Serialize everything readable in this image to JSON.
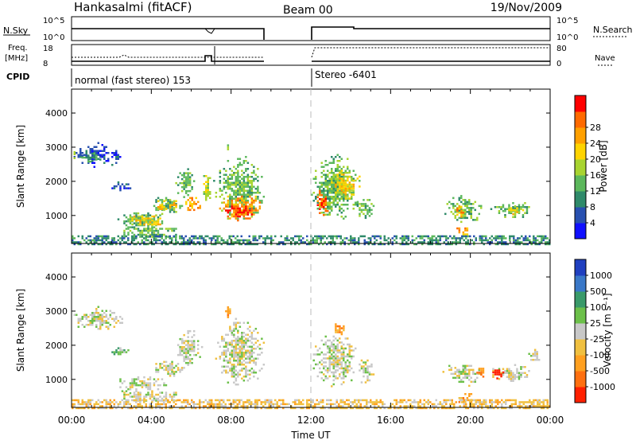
{
  "header": {
    "station": "Hankasalmi (fitACF)",
    "beam": "Beam 00",
    "date": "19/Nov/2009"
  },
  "top_panels": {
    "nsky_label": "N.Sky",
    "nsky_tick_top": "10^5",
    "nsky_tick_bottom": "10^0",
    "nsearch_label": "N.Search",
    "freq_label_line1": "Freq.",
    "freq_label_line2": "[MHz]",
    "freq_tick_top": "18",
    "freq_tick_bottom": "8",
    "nave_label": "Nave",
    "nave_tick_top": "80",
    "nave_tick_bottom": "0",
    "cpid_label": "CPID",
    "cpid_mode_1": "normal (fast stereo) 153",
    "cpid_mode_2": "Stereo -6401"
  },
  "chart_data": [
    {
      "type": "heatmap",
      "name": "power",
      "ylabel": "Slant Range [km]",
      "ylim": [
        180,
        4700
      ],
      "yticks": [
        "1000",
        "2000",
        "3000",
        "4000"
      ],
      "xlim": [
        0,
        24
      ],
      "colorbar": {
        "label": "Power [dB]",
        "ticks": [
          "4",
          "8",
          "12",
          "16",
          "20",
          "24",
          "28"
        ],
        "colors": [
          "#1010ff",
          "#2850b0",
          "#2f8a6a",
          "#5cb85c",
          "#a8d430",
          "#ffd400",
          "#ffa000",
          "#ff6a00",
          "#ff0000"
        ]
      },
      "regions": [
        {
          "t0": 0.0,
          "t1": 2.6,
          "r0": 2450,
          "r1": 3150,
          "level": 1
        },
        {
          "t0": 0.3,
          "t1": 1.6,
          "r0": 2600,
          "r1": 2900,
          "level": 2
        },
        {
          "t0": 0.0,
          "t1": 0.2,
          "r0": 2700,
          "r1": 3000,
          "level": 3
        },
        {
          "t0": 1.8,
          "t1": 3.0,
          "r0": 1700,
          "r1": 2000,
          "level": 1
        },
        {
          "t0": 2.2,
          "t1": 4.8,
          "r0": 600,
          "r1": 1150,
          "level": 3
        },
        {
          "t0": 3.0,
          "t1": 4.4,
          "r0": 750,
          "r1": 1000,
          "level": 5
        },
        {
          "t0": 4.0,
          "t1": 5.6,
          "r0": 1050,
          "r1": 1600,
          "level": 3
        },
        {
          "t0": 4.3,
          "t1": 5.2,
          "r0": 1200,
          "r1": 1450,
          "level": 5
        },
        {
          "t0": 2.6,
          "t1": 5.2,
          "r0": 380,
          "r1": 640,
          "level": 3
        },
        {
          "t0": 5.2,
          "t1": 6.2,
          "r0": 1500,
          "r1": 2500,
          "level": 3
        },
        {
          "t0": 5.5,
          "t1": 6.5,
          "r0": 1100,
          "r1": 1600,
          "level": 6
        },
        {
          "t0": 6.5,
          "t1": 7.0,
          "r0": 1300,
          "r1": 2300,
          "level": 4
        },
        {
          "t0": 7.1,
          "t1": 9.7,
          "r0": 800,
          "r1": 2800,
          "level": 3
        },
        {
          "t0": 7.3,
          "t1": 9.6,
          "r0": 850,
          "r1": 1700,
          "level": 6
        },
        {
          "t0": 7.6,
          "t1": 9.3,
          "r0": 950,
          "r1": 1350,
          "level": 8
        },
        {
          "t0": 7.6,
          "t1": 8.0,
          "r0": 2850,
          "r1": 3200,
          "level": 4
        },
        {
          "t0": 12.0,
          "t1": 14.4,
          "r0": 800,
          "r1": 2800,
          "level": 3
        },
        {
          "t0": 12.1,
          "t1": 12.9,
          "r0": 1000,
          "r1": 1800,
          "level": 7
        },
        {
          "t0": 13.0,
          "t1": 14.5,
          "r0": 1500,
          "r1": 2400,
          "level": 5
        },
        {
          "t0": 14.2,
          "t1": 15.2,
          "r0": 900,
          "r1": 1600,
          "level": 3
        },
        {
          "t0": 18.6,
          "t1": 20.6,
          "r0": 800,
          "r1": 1600,
          "level": 3
        },
        {
          "t0": 19.2,
          "t1": 19.7,
          "r0": 900,
          "r1": 1400,
          "level": 6
        },
        {
          "t0": 20.9,
          "t1": 23.2,
          "r0": 950,
          "r1": 1450,
          "level": 3
        },
        {
          "t0": 21.7,
          "t1": 22.6,
          "r0": 1000,
          "r1": 1300,
          "level": 5
        },
        {
          "t0": 19.3,
          "t1": 19.8,
          "r0": 450,
          "r1": 650,
          "level": 6
        },
        {
          "t0": 0.0,
          "t1": 24.0,
          "r0": 180,
          "r1": 420,
          "level": 2
        }
      ]
    },
    {
      "type": "heatmap",
      "name": "velocity",
      "ylabel": "Slant Range [km]",
      "ylim": [
        180,
        4700
      ],
      "yticks": [
        "1000",
        "2000",
        "3000",
        "4000"
      ],
      "xlim": [
        0,
        24
      ],
      "xlabel": "Time UT",
      "xticks": [
        "00:00",
        "04:00",
        "08:00",
        "12:00",
        "16:00",
        "20:00",
        "00:00"
      ],
      "colorbar": {
        "label": "Velocity [m s⁻¹]",
        "ticks": [
          "1000",
          "500",
          "100",
          "25",
          "-25",
          "-100",
          "-500",
          "-1000"
        ],
        "colors": [
          "#2040c0",
          "#3a78c8",
          "#3a9a6a",
          "#6cc04a",
          "#c8c8c8",
          "#f0c040",
          "#ffa020",
          "#ff7010",
          "#ff2000"
        ]
      },
      "regions": [
        {
          "t0": 0.0,
          "t1": 2.6,
          "r0": 2450,
          "r1": 3150,
          "level": 4
        },
        {
          "t0": 1.8,
          "t1": 3.0,
          "r0": 1700,
          "r1": 2000,
          "level": 3
        },
        {
          "t0": 2.2,
          "t1": 4.8,
          "r0": 600,
          "r1": 1150,
          "level": 4
        },
        {
          "t0": 4.0,
          "t1": 5.6,
          "r0": 1050,
          "r1": 1600,
          "level": 4
        },
        {
          "t0": 2.6,
          "t1": 5.2,
          "r0": 380,
          "r1": 640,
          "level": 4
        },
        {
          "t0": 5.2,
          "t1": 6.5,
          "r0": 1400,
          "r1": 2500,
          "level": 4
        },
        {
          "t0": 7.1,
          "t1": 9.7,
          "r0": 800,
          "r1": 2800,
          "level": 4
        },
        {
          "t0": 7.6,
          "t1": 8.0,
          "r0": 2850,
          "r1": 3200,
          "level": 6
        },
        {
          "t0": 12.0,
          "t1": 14.4,
          "r0": 800,
          "r1": 2400,
          "level": 4
        },
        {
          "t0": 13.0,
          "t1": 13.8,
          "r0": 2300,
          "r1": 2700,
          "level": 6
        },
        {
          "t0": 14.2,
          "t1": 15.2,
          "r0": 900,
          "r1": 1700,
          "level": 4
        },
        {
          "t0": 18.6,
          "t1": 20.6,
          "r0": 800,
          "r1": 1600,
          "level": 4
        },
        {
          "t0": 20.2,
          "t1": 20.8,
          "r0": 1100,
          "r1": 1400,
          "level": 7
        },
        {
          "t0": 20.9,
          "t1": 23.2,
          "r0": 950,
          "r1": 1450,
          "level": 4
        },
        {
          "t0": 21.0,
          "t1": 21.6,
          "r0": 1050,
          "r1": 1350,
          "level": 8
        },
        {
          "t0": 22.8,
          "t1": 23.5,
          "r0": 1500,
          "r1": 1950,
          "level": 4
        },
        {
          "t0": 19.3,
          "t1": 20.0,
          "r0": 350,
          "r1": 600,
          "level": 6
        },
        {
          "t0": 0.0,
          "t1": 24.0,
          "r0": 180,
          "r1": 420,
          "level": 5
        }
      ]
    }
  ]
}
